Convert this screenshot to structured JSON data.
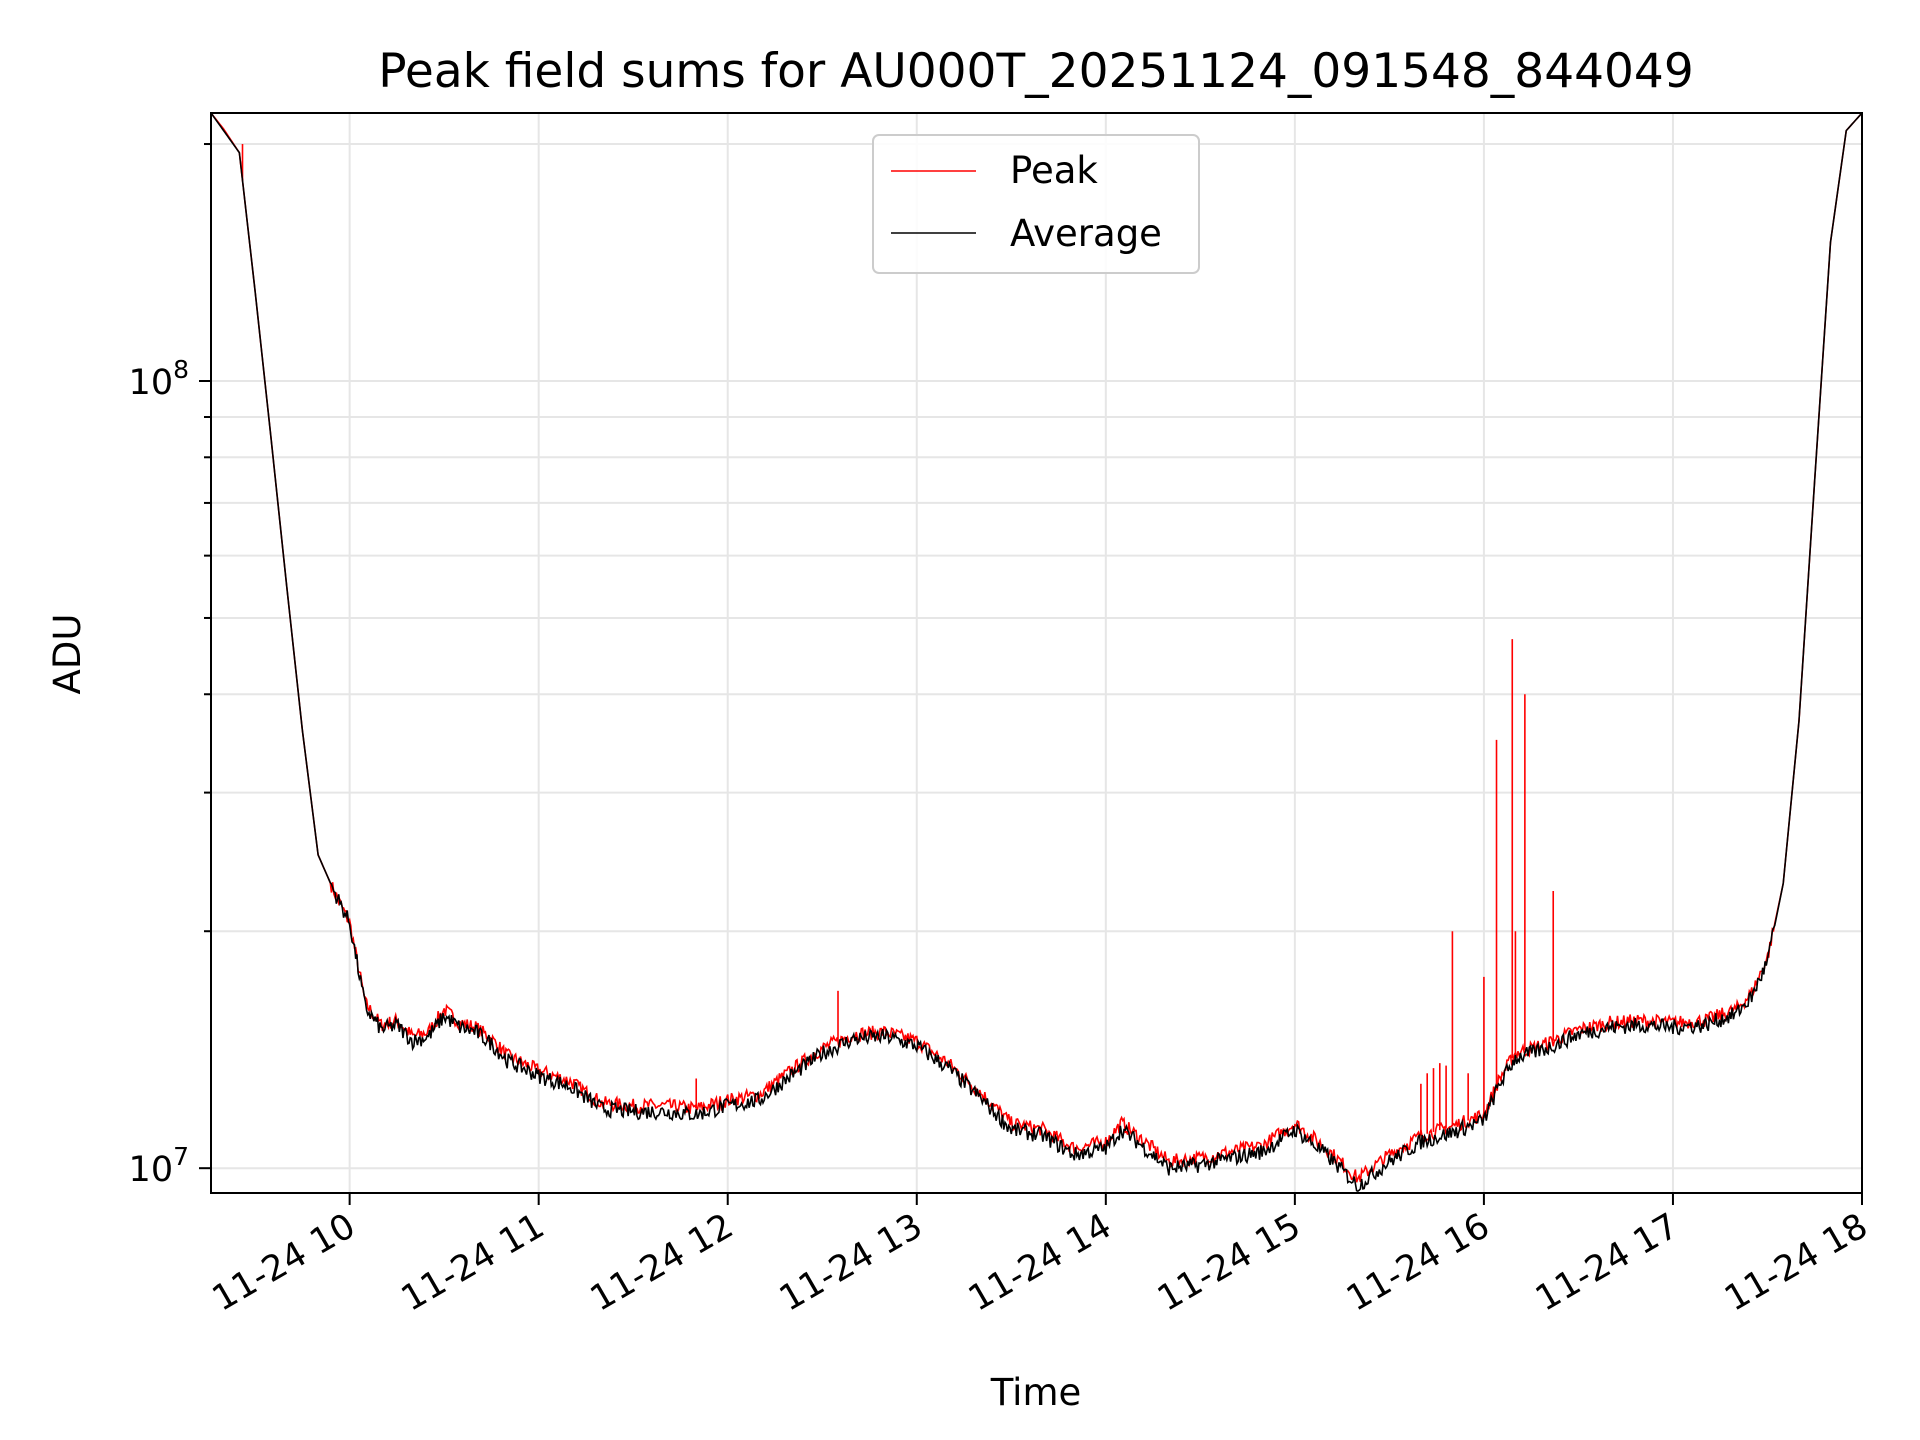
{
  "chart_data": {
    "type": "line",
    "title": "Peak field sums for AU000T_20251124_091548_844049",
    "xlabel": "Time",
    "ylabel": "ADU",
    "y_scale": "log",
    "ylim": [
      9300000,
      219000000
    ],
    "xlim": [
      "2025-11-24 09:16",
      "2025-11-24 18:00"
    ],
    "grid": true,
    "legend_position": "top-center",
    "x_tick_labels": [
      "11-24 10",
      "11-24 11",
      "11-24 12",
      "11-24 13",
      "11-24 14",
      "11-24 15",
      "11-24 16",
      "11-24 17",
      "11-24 18"
    ],
    "y_tick_labels": [
      {
        "base": "10",
        "exp": "7"
      },
      {
        "base": "10",
        "exp": "8"
      }
    ],
    "x": [
      "2025-11-24 09:16",
      "2025-11-24 09:20",
      "2025-11-24 09:25",
      "2025-11-24 09:30",
      "2025-11-24 09:35",
      "2025-11-24 09:40",
      "2025-11-24 09:45",
      "2025-11-24 09:50",
      "2025-11-24 09:55",
      "2025-11-24 10:00",
      "2025-11-24 10:05",
      "2025-11-24 10:10",
      "2025-11-24 10:15",
      "2025-11-24 10:20",
      "2025-11-24 10:25",
      "2025-11-24 10:30",
      "2025-11-24 10:35",
      "2025-11-24 10:40",
      "2025-11-24 10:45",
      "2025-11-24 10:50",
      "2025-11-24 10:55",
      "2025-11-24 11:00",
      "2025-11-24 11:10",
      "2025-11-24 11:20",
      "2025-11-24 11:30",
      "2025-11-24 11:40",
      "2025-11-24 11:50",
      "2025-11-24 12:00",
      "2025-11-24 12:10",
      "2025-11-24 12:20",
      "2025-11-24 12:30",
      "2025-11-24 12:40",
      "2025-11-24 12:50",
      "2025-11-24 13:00",
      "2025-11-24 13:10",
      "2025-11-24 13:20",
      "2025-11-24 13:30",
      "2025-11-24 13:40",
      "2025-11-24 13:50",
      "2025-11-24 14:00",
      "2025-11-24 14:05",
      "2025-11-24 14:10",
      "2025-11-24 14:20",
      "2025-11-24 14:30",
      "2025-11-24 14:40",
      "2025-11-24 14:50",
      "2025-11-24 15:00",
      "2025-11-24 15:10",
      "2025-11-24 15:20",
      "2025-11-24 15:30",
      "2025-11-24 15:40",
      "2025-11-24 15:50",
      "2025-11-24 16:00",
      "2025-11-24 16:05",
      "2025-11-24 16:10",
      "2025-11-24 16:20",
      "2025-11-24 16:30",
      "2025-11-24 16:40",
      "2025-11-24 16:50",
      "2025-11-24 17:00",
      "2025-11-24 17:10",
      "2025-11-24 17:20",
      "2025-11-24 17:25",
      "2025-11-24 17:30",
      "2025-11-24 17:35",
      "2025-11-24 17:40",
      "2025-11-24 17:45",
      "2025-11-24 17:50",
      "2025-11-24 17:55",
      "2025-11-24 18:00"
    ],
    "series": [
      {
        "name": "Peak",
        "color": "#ff0000",
        "values": [
          219000000,
          209000000,
          195000000,
          130000000,
          85000000,
          55000000,
          36000000,
          25000000,
          22500000,
          20500000,
          16200000,
          15200000,
          15400000,
          14700000,
          14900000,
          15900000,
          15300000,
          15100000,
          14600000,
          13900000,
          13600000,
          13300000,
          12900000,
          12100000,
          12000000,
          12000000,
          11900000,
          12200000,
          12400000,
          13300000,
          14200000,
          14800000,
          14900000,
          14500000,
          13600000,
          12500000,
          11400000,
          11200000,
          10600000,
          10800000,
          11400000,
          11000000,
          10200000,
          10300000,
          10500000,
          10700000,
          11400000,
          10600000,
          9700000,
          10400000,
          11000000,
          11300000,
          11700000,
          13000000,
          14000000,
          14400000,
          15000000,
          15300000,
          15400000,
          15300000,
          15400000,
          15900000,
          16700000,
          18500000,
          23000000,
          37000000,
          75000000,
          150000000,
          208000000,
          219000000
        ]
      },
      {
        "name": "Average",
        "color": "#000000",
        "values": [
          219000000,
          208000000,
          195000000,
          130000000,
          85000000,
          55000000,
          36000000,
          25000000,
          22500000,
          20500000,
          16000000,
          15000000,
          15200000,
          14500000,
          14700000,
          15600000,
          15100000,
          14900000,
          14400000,
          13700000,
          13400000,
          13100000,
          12700000,
          11900000,
          11800000,
          11800000,
          11700000,
          12000000,
          12200000,
          13100000,
          14000000,
          14600000,
          14700000,
          14300000,
          13400000,
          12300000,
          11200000,
          11000000,
          10400000,
          10600000,
          11200000,
          10800000,
          10000000,
          10100000,
          10300000,
          10500000,
          11200000,
          10400000,
          9500000,
          10200000,
          10800000,
          11100000,
          11500000,
          12800000,
          13800000,
          14200000,
          14800000,
          15100000,
          15200000,
          15100000,
          15200000,
          15700000,
          16500000,
          18300000,
          23000000,
          37000000,
          75000000,
          150000000,
          208000000,
          219000000
        ]
      }
    ],
    "peak_spikes": [
      {
        "x": "2025-11-24 09:26",
        "y": 200000000
      },
      {
        "x": "2025-11-24 12:35",
        "y": 16800000
      },
      {
        "x": "2025-11-24 11:50",
        "y": 13000000
      },
      {
        "x": "2025-11-24 15:40",
        "y": 12800000
      },
      {
        "x": "2025-11-24 15:42",
        "y": 13200000
      },
      {
        "x": "2025-11-24 15:44",
        "y": 13400000
      },
      {
        "x": "2025-11-24 15:46",
        "y": 13600000
      },
      {
        "x": "2025-11-24 15:48",
        "y": 13500000
      },
      {
        "x": "2025-11-24 15:50",
        "y": 20000000
      },
      {
        "x": "2025-11-24 15:55",
        "y": 13200000
      },
      {
        "x": "2025-11-24 16:00",
        "y": 17500000
      },
      {
        "x": "2025-11-24 16:04",
        "y": 35000000
      },
      {
        "x": "2025-11-24 16:09",
        "y": 47000000
      },
      {
        "x": "2025-11-24 16:10",
        "y": 20000000
      },
      {
        "x": "2025-11-24 16:13",
        "y": 40000000
      },
      {
        "x": "2025-11-24 16:22",
        "y": 22500000
      }
    ]
  }
}
